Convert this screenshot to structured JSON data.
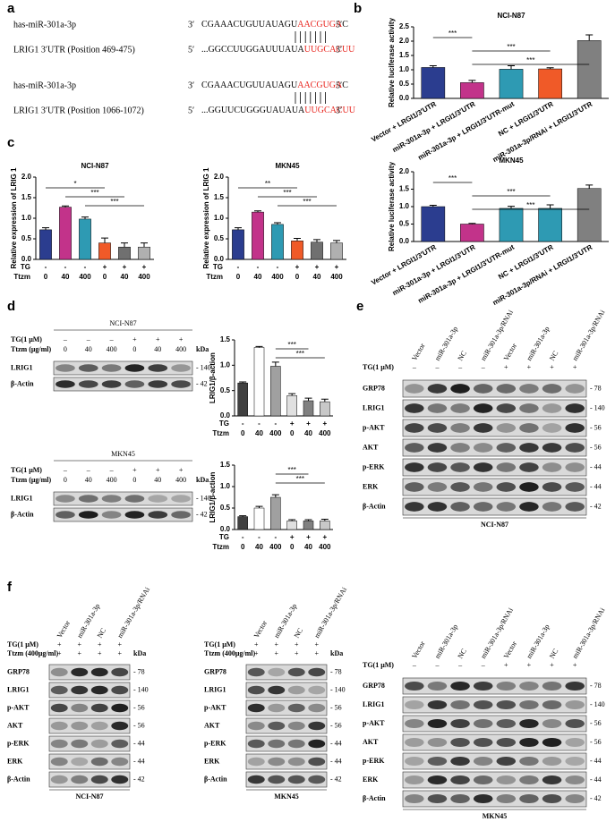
{
  "labels": [
    "a",
    "b",
    "c",
    "d",
    "e",
    "f"
  ],
  "sequences": [
    {
      "name": "has-miR-301a-3p",
      "left": "3′",
      "seq": "CGAAACUGUUAUAGU",
      "match": "AACGUGA",
      "tail": "C",
      "right": "5′"
    },
    {
      "name": "LRIG1 3′UTR (Position 469-475)",
      "left": "5′",
      "seq": "...GGCCUUGGAUUUAUA",
      "match": "UUGCACUU",
      "right": "3′"
    },
    {
      "name": "has-miR-301a-3p",
      "left": "3′",
      "seq": "CGAAACUGUUAUAGU",
      "match": "AACGUGA",
      "tail": "C",
      "right": "5′"
    },
    {
      "name": "LRIG1 3′UTR (Position 1066-1072)",
      "left": "5′",
      "seq": "...GGUUCUGGGUAUAUA",
      "match": "UUGCACUU",
      "right": "3′"
    }
  ],
  "chart_data": [
    {
      "type": "bar",
      "title": "NCI-N87",
      "ylabel": "Relative luciferase activity",
      "categories": [
        "Vector + LRGI1/3′UTR",
        "miR-301a-3p + LRGI1/3′UTR",
        "miR-301a-3p + LRGI1/3′UTR-mut",
        "NC + LRGI1/3′UTR",
        "miR-301a-3p/RNAi + LRGI1/3′UTR"
      ],
      "values": [
        1.08,
        0.55,
        1.02,
        1.03,
        2.02
      ],
      "errors": [
        0.06,
        0.08,
        0.12,
        0.04,
        0.2
      ],
      "colors": [
        "#2b3d8f",
        "#c2338a",
        "#2e9ab3",
        "#f05a28",
        "#808080"
      ],
      "ylim": [
        0,
        2.5
      ],
      "yticks": [
        {
          "value": 0,
          "label": "0.0"
        },
        {
          "value": 0.5,
          "label": "0.5"
        },
        {
          "value": 1,
          "label": "1.0"
        },
        {
          "value": 1.5,
          "label": "1.5"
        },
        {
          "value": 2,
          "label": "2.0"
        },
        {
          "value": 2.5,
          "label": "2.5"
        }
      ],
      "annotations": [
        "***",
        "***",
        "***"
      ]
    },
    {
      "type": "bar",
      "title": "MKN45",
      "ylabel": "Relative luciferase activity",
      "categories": [
        "Vector + LRGI1/3′UTR",
        "miR-301a-3p + LRGI1/3′UTR",
        "miR-301a-3p + LRGI1/3′UTR-mut",
        "NC + LRGI1/3′UTR",
        "miR-301a-3p/RNAi + LRGI1/3′UTR"
      ],
      "values": [
        1.0,
        0.5,
        0.95,
        0.95,
        1.52
      ],
      "errors": [
        0.04,
        0.02,
        0.06,
        0.1,
        0.1
      ],
      "colors": [
        "#2b3d8f",
        "#c2338a",
        "#2e9ab3",
        "#2e9ab3",
        "#808080"
      ],
      "ylim": [
        0,
        2.0
      ],
      "yticks": [
        {
          "value": 0,
          "label": "0.0"
        },
        {
          "value": 0.5,
          "label": "0.5"
        },
        {
          "value": 1,
          "label": "1.0"
        },
        {
          "value": 1.5,
          "label": "1.5"
        },
        {
          "value": 2,
          "label": "2.0"
        }
      ],
      "annotations": [
        "***",
        "***",
        "***"
      ]
    },
    {
      "type": "bar",
      "title": "NCI-N87",
      "ylabel": "Relative expression of  LRIG 1",
      "rows": [
        {
          "label": "TG",
          "cells": [
            "-",
            "-",
            "-",
            "+",
            "+",
            "+"
          ]
        },
        {
          "label": "Ttzm",
          "cells": [
            "0",
            "40",
            "400",
            "0",
            "40",
            "400"
          ]
        }
      ],
      "values": [
        0.72,
        1.27,
        0.98,
        0.4,
        0.3,
        0.3
      ],
      "errors": [
        0.05,
        0.03,
        0.05,
        0.12,
        0.1,
        0.1
      ],
      "colors": [
        "#2b3d8f",
        "#c2338a",
        "#2e9ab3",
        "#f05a28",
        "#707070",
        "#b0b0b0"
      ],
      "ylim": [
        0,
        2.0
      ],
      "yticks": [
        {
          "value": 0,
          "label": "0.0"
        },
        {
          "value": 0.5,
          "label": "0.5"
        },
        {
          "value": 1,
          "label": "1.0"
        },
        {
          "value": 1.5,
          "label": "1.5"
        },
        {
          "value": 2,
          "label": "2.0"
        }
      ],
      "annotations": [
        "*",
        "***",
        "***"
      ]
    },
    {
      "type": "bar",
      "title": "MKN45",
      "ylabel": "Relative expression of  LRIG 1",
      "rows": [
        {
          "label": "TG",
          "cells": [
            "-",
            "-",
            "-",
            "+",
            "+",
            "+"
          ]
        },
        {
          "label": "Ttzm",
          "cells": [
            "0",
            "40",
            "400",
            "0",
            "40",
            "400"
          ]
        }
      ],
      "values": [
        0.72,
        1.15,
        0.85,
        0.45,
        0.42,
        0.4
      ],
      "errors": [
        0.05,
        0.03,
        0.04,
        0.06,
        0.06,
        0.06
      ],
      "colors": [
        "#2b3d8f",
        "#c2338a",
        "#2e9ab3",
        "#f05a28",
        "#707070",
        "#b0b0b0"
      ],
      "ylim": [
        0,
        2.0
      ],
      "yticks": [
        {
          "value": 0,
          "label": "0.0"
        },
        {
          "value": 0.5,
          "label": "0.5"
        },
        {
          "value": 1,
          "label": "1.0"
        },
        {
          "value": 1.5,
          "label": "1.5"
        },
        {
          "value": 2,
          "label": "2.0"
        }
      ],
      "annotations": [
        "**",
        "***",
        "***"
      ]
    },
    {
      "type": "bar",
      "ylabel": "LRIG1/β-action",
      "rows": [
        {
          "label": "TG",
          "cells": [
            "-",
            "-",
            "-",
            "+",
            "+",
            "+"
          ]
        },
        {
          "label": "Ttzm",
          "cells": [
            "0",
            "40",
            "400",
            "0",
            "40",
            "400"
          ]
        }
      ],
      "values": [
        0.65,
        1.35,
        0.98,
        0.4,
        0.3,
        0.28
      ],
      "errors": [
        0.02,
        0.02,
        0.08,
        0.04,
        0.05,
        0.05
      ],
      "colors": [
        "#404040",
        "#ffffff",
        "#a0a0a0",
        "#e0e0e0",
        "#808080",
        "#c8c8c8"
      ],
      "ylim": [
        0,
        1.5
      ],
      "yticks": [
        {
          "value": 0,
          "label": "0.0"
        },
        {
          "value": 0.5,
          "label": "0.5"
        },
        {
          "value": 1,
          "label": "1.0"
        },
        {
          "value": 1.5,
          "label": "1.5"
        }
      ],
      "annotations": [
        "***",
        "***"
      ]
    },
    {
      "type": "bar",
      "ylabel": "LRIG1/β-action",
      "rows": [
        {
          "label": "TG",
          "cells": [
            "-",
            "-",
            "-",
            "+",
            "+",
            "+"
          ]
        },
        {
          "label": "Ttzm",
          "cells": [
            "0",
            "40",
            "400",
            "0",
            "40",
            "400"
          ]
        }
      ],
      "values": [
        0.3,
        0.5,
        0.75,
        0.2,
        0.2,
        0.2
      ],
      "errors": [
        0.02,
        0.04,
        0.06,
        0.03,
        0.03,
        0.04
      ],
      "colors": [
        "#404040",
        "#ffffff",
        "#a0a0a0",
        "#e0e0e0",
        "#808080",
        "#c8c8c8"
      ],
      "ylim": [
        0,
        1.5
      ],
      "yticks": [
        {
          "value": 0,
          "label": "0.0"
        },
        {
          "value": 0.5,
          "label": "0.5"
        },
        {
          "value": 1,
          "label": "1.0"
        },
        {
          "value": 1.5,
          "label": "1.5"
        }
      ],
      "annotations": [
        "***",
        "***"
      ]
    }
  ],
  "blots": [
    {
      "title": "NCI-N87",
      "rows": [
        {
          "label": "TG(1 μM)",
          "cells": [
            "–",
            "–",
            "–",
            "+",
            "+",
            "+"
          ]
        },
        {
          "label": "Ttzm (μg/ml)",
          "cells": [
            "0",
            "40",
            "400",
            "0",
            "40",
            "400"
          ]
        }
      ],
      "unit": "kDa",
      "bands": [
        {
          "name": "LRIG1",
          "kda": "- 140"
        },
        {
          "name": "β-Actin",
          "kda": "- 42"
        }
      ]
    },
    {
      "title": "MKN45",
      "rows": [
        {
          "label": "TG(1 μM)",
          "cells": [
            "–",
            "–",
            "–",
            "+",
            "+",
            "+"
          ]
        },
        {
          "label": "Ttzm (μg/ml)",
          "cells": [
            "0",
            "40",
            "400",
            "0",
            "40",
            "400"
          ]
        }
      ],
      "unit": "kDa",
      "bands": [
        {
          "name": "LRIG1",
          "kda": "- 140"
        },
        {
          "name": "β-Actin",
          "kda": "- 42"
        }
      ]
    },
    {
      "lanes": [
        "Vector",
        "miR-301a-3p",
        "NC",
        "miR-301a-3p/RNAi",
        "Vector",
        "miR-301a-3p",
        "NC",
        "miR-301a-3p/RNAi"
      ],
      "rows": [
        {
          "label": "TG(1 μM)",
          "cells": [
            "–",
            "–",
            "–",
            "–",
            "+",
            "+",
            "+",
            "+"
          ]
        }
      ],
      "bands": [
        {
          "name": "GRP78",
          "kda": "- 78"
        },
        {
          "name": "LRIG1",
          "kda": "- 140"
        },
        {
          "name": "p-AKT",
          "kda": "- 56"
        },
        {
          "name": "AKT",
          "kda": "- 56"
        },
        {
          "name": "p-ERK",
          "kda": "- 44"
        },
        {
          "name": "ERK",
          "kda": "- 44"
        },
        {
          "name": "β-Actin",
          "kda": "- 42"
        }
      ],
      "caption": "NCI-N87"
    },
    {
      "lanes": [
        "Vector",
        "miR-301a-3p",
        "NC",
        "miR-301a-3p/RNAi"
      ],
      "rows": [
        {
          "label": "TG(1 μM)",
          "cells": [
            "+",
            "+",
            "+",
            "+"
          ]
        },
        {
          "label": "Ttzm (400μg/ml)",
          "cells": [
            "+",
            "+",
            "+",
            "+"
          ]
        }
      ],
      "unit": "kDa",
      "bands": [
        {
          "name": "GRP78",
          "kda": "- 78"
        },
        {
          "name": "LRIG1",
          "kda": "- 140"
        },
        {
          "name": "p-AKT",
          "kda": "- 56"
        },
        {
          "name": "AKT",
          "kda": "- 56"
        },
        {
          "name": "p-ERK",
          "kda": "- 44"
        },
        {
          "name": "ERK",
          "kda": "- 44"
        },
        {
          "name": "β-Actin",
          "kda": "- 42"
        }
      ],
      "caption": "NCI-N87"
    },
    {
      "lanes": [
        "Vector",
        "miR-301a-3p",
        "NC",
        "miR-301a-3p/RNAi"
      ],
      "rows": [
        {
          "label": "TG(1 μM)",
          "cells": [
            "+",
            "+",
            "+",
            "+"
          ]
        },
        {
          "label": "Ttzm (400μg/ml)",
          "cells": [
            "+",
            "+",
            "+",
            "+"
          ]
        }
      ],
      "unit": "kDa",
      "bands": [
        {
          "name": "GRP78",
          "kda": "- 78"
        },
        {
          "name": "LRIG1",
          "kda": "- 140"
        },
        {
          "name": "p-AKT",
          "kda": "- 56"
        },
        {
          "name": "AKT",
          "kda": "- 56"
        },
        {
          "name": "p-ERK",
          "kda": "- 44"
        },
        {
          "name": "ERK",
          "kda": "- 44"
        },
        {
          "name": "β-Actin",
          "kda": "- 42"
        }
      ],
      "caption": "MKN45"
    },
    {
      "lanes": [
        "Vector",
        "miR-301a-3p",
        "NC",
        "miR-301a-3p/RNAi",
        "Vector",
        "miR-301a-3p",
        "NC",
        "miR-301a-3p/RNAi"
      ],
      "rows": [
        {
          "label": "TG(1 μM)",
          "cells": [
            "–",
            "–",
            "–",
            "–",
            "+",
            "+",
            "+",
            "+"
          ]
        }
      ],
      "bands": [
        {
          "name": "GRP78",
          "kda": "- 78"
        },
        {
          "name": "LRIG1",
          "kda": "- 140"
        },
        {
          "name": "p-AKT",
          "kda": "- 56"
        },
        {
          "name": "AKT",
          "kda": "- 56"
        },
        {
          "name": "p-ERK",
          "kda": "- 44"
        },
        {
          "name": "ERK",
          "kda": "- 44"
        },
        {
          "name": "β-Actin",
          "kda": "- 42"
        }
      ],
      "caption": "MKN45"
    }
  ]
}
